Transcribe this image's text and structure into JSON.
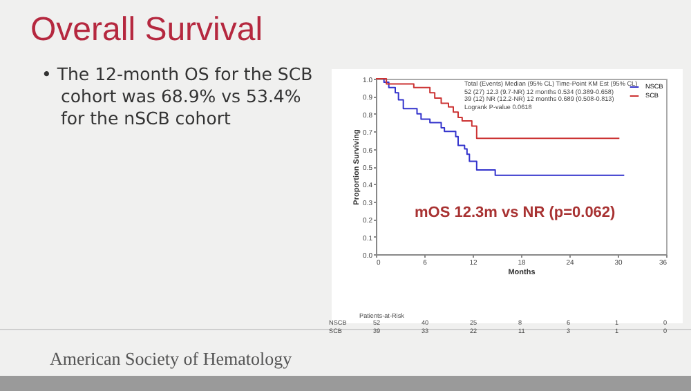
{
  "chart_data": {
    "type": "step",
    "title": "Overall Survival",
    "xlabel": "Months",
    "ylabel": "Proportion Surviving",
    "xlim": [
      0,
      36
    ],
    "xticks": [
      0,
      6,
      12,
      18,
      24,
      30,
      36
    ],
    "ylim": [
      0,
      1
    ],
    "yticks": [
      {
        "value": 0,
        "label": "0.0"
      },
      0.1,
      0.2,
      0.3,
      0.4,
      0.5,
      0.6,
      0.7,
      0.8,
      0.9,
      {
        "value": 1,
        "label": "1.0"
      }
    ],
    "grid": false,
    "legend": "top right",
    "marker": "none",
    "line_style": "solid",
    "series": [
      {
        "name": "NSCB",
        "color": "#3333cc",
        "x": [
          0,
          1.0,
          1.6,
          2.4,
          2.8,
          3.4,
          5.1,
          5.6,
          6.7,
          8.1,
          8.5,
          9.9,
          10.2,
          11.0,
          11.3,
          11.6,
          12.5,
          14.8,
          30.8
        ],
        "values": [
          1.0,
          0.98,
          0.95,
          0.92,
          0.88,
          0.83,
          0.8,
          0.77,
          0.75,
          0.72,
          0.7,
          0.67,
          0.62,
          0.6,
          0.57,
          0.53,
          0.48,
          0.45,
          0.45
        ]
      },
      {
        "name": "SCB",
        "color": "#cc3333",
        "x": [
          0,
          1.3,
          4.7,
          6.7,
          7.3,
          8.1,
          9.0,
          9.6,
          10.2,
          10.7,
          11.9,
          12.5,
          30.2
        ],
        "values": [
          1.0,
          0.97,
          0.95,
          0.92,
          0.89,
          0.86,
          0.84,
          0.81,
          0.78,
          0.76,
          0.73,
          0.66,
          0.66
        ]
      }
    ],
    "annotations": [
      "• The 12-month OS for the SCB cohort was 68.9% vs 53.4% for the nSCB cohort",
      "mOS 12.3m vs NR (p=0.062)",
      "Total (Events)   Median (95% CL)   Time-Point   KM Est (95% CL)",
      "52 (27)   12.3 (9.7-NR)   12 months   0.534 (0.389-0.658)",
      "39 (12)   NR (12.2-NR)   12 months   0.689 (0.508-0.813)",
      "Logrank P-value 0.0618",
      "Patients-at-Risk",
      "NSCB 52 40 25 8 6 1 0",
      "SCB 39 33 22 11 3 1 0",
      "American Society of Hematology"
    ]
  }
}
